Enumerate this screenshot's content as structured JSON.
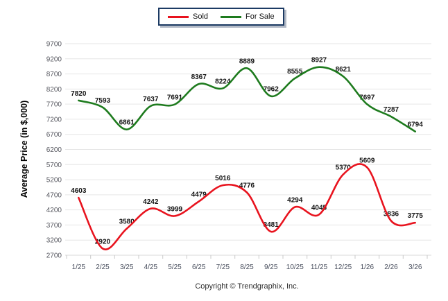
{
  "page": {
    "background": "#ffffff"
  },
  "legend": {
    "items": [
      {
        "label": "Sold",
        "color": "#e8131e"
      },
      {
        "label": "For Sale",
        "color": "#1e7b1e"
      }
    ]
  },
  "footer": {
    "copyright": "Copyright © Trendgraphix, Inc."
  },
  "chart_data": {
    "type": "line",
    "title": "",
    "xlabel": "",
    "ylabel": "Average Price (in $,000)",
    "categories": [
      "1/25",
      "2/25",
      "3/25",
      "4/25",
      "5/25",
      "6/25",
      "7/25",
      "8/25",
      "9/25",
      "10/25",
      "11/25",
      "12/25",
      "1/26",
      "2/26",
      "3/26"
    ],
    "series": [
      {
        "name": "Sold",
        "color": "#e8131e",
        "values": [
          4603,
          2920,
          3580,
          4242,
          3999,
          4479,
          5016,
          4776,
          3481,
          4294,
          4045,
          5370,
          5609,
          3836,
          3775
        ]
      },
      {
        "name": "For Sale",
        "color": "#1e7b1e",
        "values": [
          7820,
          7593,
          6861,
          7637,
          7691,
          8367,
          8224,
          8889,
          7962,
          8555,
          8927,
          8621,
          7697,
          7287,
          6794
        ]
      }
    ],
    "ylim": [
      2700,
      9700
    ],
    "yticks": [
      2700,
      3200,
      3700,
      4200,
      4700,
      5200,
      5700,
      6200,
      6700,
      7200,
      7700,
      8200,
      8700,
      9200,
      9700
    ],
    "grid": true,
    "smooth": true,
    "data_labels": true,
    "legend_position": "top-center"
  }
}
